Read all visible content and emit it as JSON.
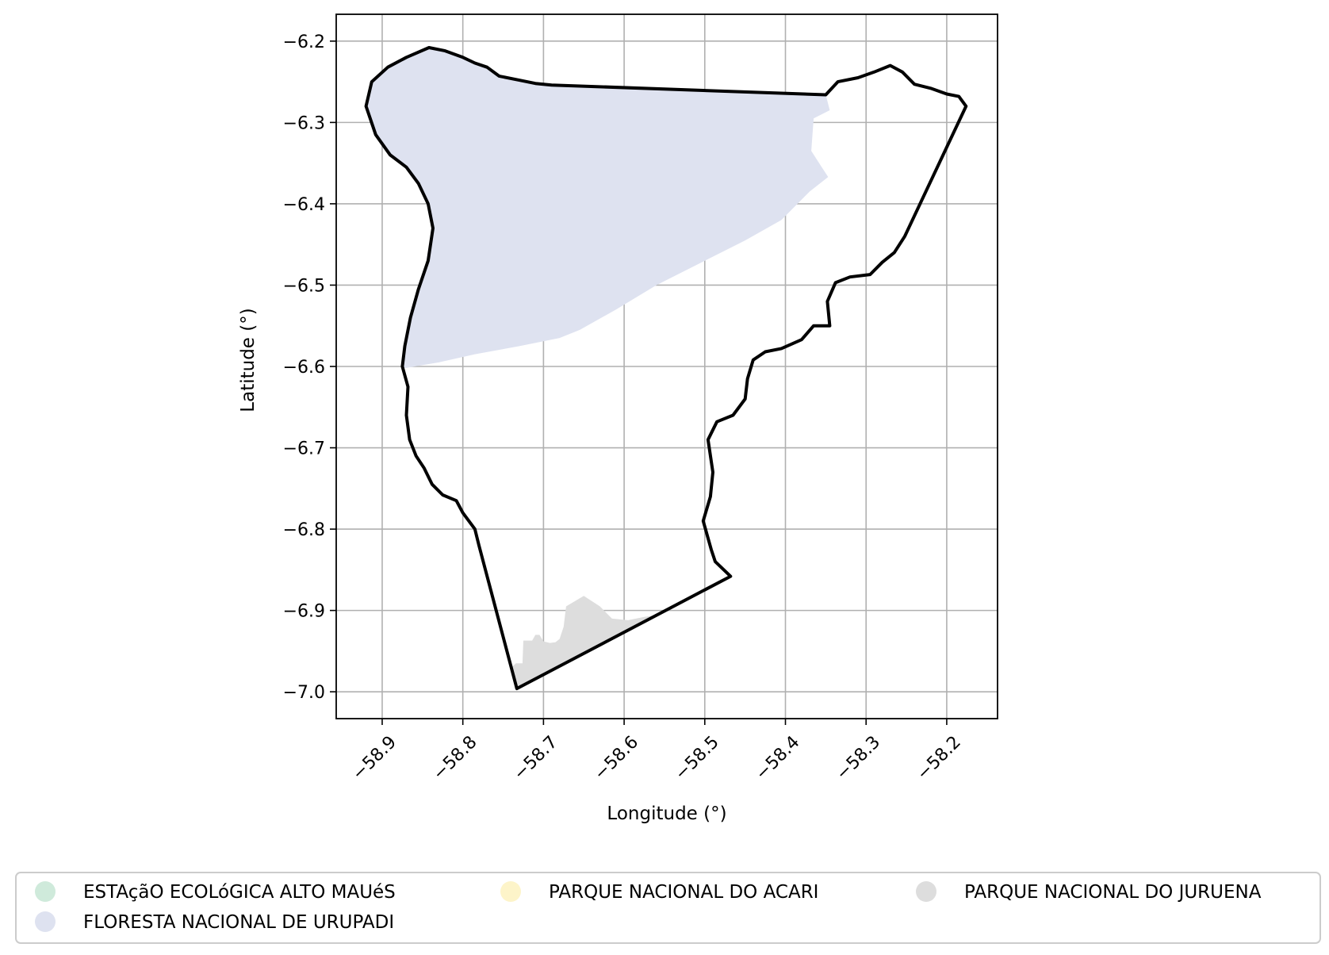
{
  "map": {
    "xlabel": "Longitude (°)",
    "ylabel": "Latitude (°)",
    "xlim": [
      -58.957,
      -58.137
    ],
    "ylim": [
      -7.033,
      -6.167
    ],
    "grid": true,
    "x_ticks": [
      {
        "value": -58.9,
        "label": "−58.9"
      },
      {
        "value": -58.8,
        "label": "−58.8"
      },
      {
        "value": -58.7,
        "label": "−58.7"
      },
      {
        "value": -58.6,
        "label": "−58.6"
      },
      {
        "value": -58.5,
        "label": "−58.5"
      },
      {
        "value": -58.4,
        "label": "−58.4"
      },
      {
        "value": -58.3,
        "label": "−58.3"
      },
      {
        "value": -58.2,
        "label": "−58.2"
      }
    ],
    "y_ticks": [
      {
        "value": -6.2,
        "label": "−6.2"
      },
      {
        "value": -6.3,
        "label": "−6.3"
      },
      {
        "value": -6.4,
        "label": "−6.4"
      },
      {
        "value": -6.5,
        "label": "−6.5"
      },
      {
        "value": -6.6,
        "label": "−6.6"
      },
      {
        "value": -6.7,
        "label": "−6.7"
      },
      {
        "value": -6.8,
        "label": "−6.8"
      },
      {
        "value": -6.9,
        "label": "−6.9"
      },
      {
        "value": -7.0,
        "label": "−7.0"
      }
    ],
    "boundary_color": "#000000",
    "boundary": [
      [
        -58.842,
        -6.208
      ],
      [
        -58.822,
        -6.212
      ],
      [
        -58.8,
        -6.22
      ],
      [
        -58.785,
        -6.227
      ],
      [
        -58.77,
        -6.232
      ],
      [
        -58.755,
        -6.243
      ],
      [
        -58.73,
        -6.248
      ],
      [
        -58.71,
        -6.252
      ],
      [
        -58.69,
        -6.254
      ],
      [
        -58.35,
        -6.266
      ],
      [
        -58.335,
        -6.25
      ],
      [
        -58.31,
        -6.245
      ],
      [
        -58.29,
        -6.238
      ],
      [
        -58.27,
        -6.23
      ],
      [
        -58.255,
        -6.238
      ],
      [
        -58.24,
        -6.253
      ],
      [
        -58.22,
        -6.258
      ],
      [
        -58.2,
        -6.265
      ],
      [
        -58.185,
        -6.268
      ],
      [
        -58.176,
        -6.28
      ],
      [
        -58.252,
        -6.44
      ],
      [
        -58.265,
        -6.46
      ],
      [
        -58.28,
        -6.472
      ],
      [
        -58.295,
        -6.487
      ],
      [
        -58.32,
        -6.49
      ],
      [
        -58.338,
        -6.497
      ],
      [
        -58.348,
        -6.52
      ],
      [
        -58.345,
        -6.55
      ],
      [
        -58.365,
        -6.55
      ],
      [
        -58.38,
        -6.567
      ],
      [
        -58.405,
        -6.578
      ],
      [
        -58.425,
        -6.582
      ],
      [
        -58.44,
        -6.592
      ],
      [
        -58.447,
        -6.615
      ],
      [
        -58.45,
        -6.64
      ],
      [
        -58.465,
        -6.66
      ],
      [
        -58.485,
        -6.668
      ],
      [
        -58.496,
        -6.69
      ],
      [
        -58.49,
        -6.73
      ],
      [
        -58.493,
        -6.76
      ],
      [
        -58.502,
        -6.79
      ],
      [
        -58.492,
        -6.825
      ],
      [
        -58.487,
        -6.84
      ],
      [
        -58.468,
        -6.858
      ],
      [
        -58.733,
        -6.996
      ],
      [
        -58.78,
        -6.82
      ],
      [
        -58.785,
        -6.8
      ],
      [
        -58.8,
        -6.78
      ],
      [
        -58.808,
        -6.765
      ],
      [
        -58.825,
        -6.758
      ],
      [
        -58.838,
        -6.745
      ],
      [
        -58.848,
        -6.725
      ],
      [
        -58.858,
        -6.71
      ],
      [
        -58.866,
        -6.69
      ],
      [
        -58.87,
        -6.66
      ],
      [
        -58.868,
        -6.625
      ],
      [
        -58.875,
        -6.6
      ],
      [
        -58.872,
        -6.575
      ],
      [
        -58.865,
        -6.54
      ],
      [
        -58.855,
        -6.505
      ],
      [
        -58.843,
        -6.47
      ],
      [
        -58.837,
        -6.43
      ],
      [
        -58.843,
        -6.4
      ],
      [
        -58.855,
        -6.375
      ],
      [
        -58.87,
        -6.355
      ],
      [
        -58.89,
        -6.34
      ],
      [
        -58.908,
        -6.315
      ],
      [
        -58.92,
        -6.28
      ],
      [
        -58.913,
        -6.25
      ],
      [
        -58.893,
        -6.232
      ],
      [
        -58.87,
        -6.22
      ]
    ],
    "layers": [
      {
        "name": "FLORESTA NACIONAL DE URUPADI",
        "color": "#dee2f0",
        "polygon": [
          [
            -58.842,
            -6.208
          ],
          [
            -58.822,
            -6.212
          ],
          [
            -58.8,
            -6.22
          ],
          [
            -58.785,
            -6.227
          ],
          [
            -58.77,
            -6.232
          ],
          [
            -58.755,
            -6.243
          ],
          [
            -58.73,
            -6.248
          ],
          [
            -58.71,
            -6.252
          ],
          [
            -58.69,
            -6.254
          ],
          [
            -58.35,
            -6.266
          ],
          [
            -58.345,
            -6.285
          ],
          [
            -58.365,
            -6.295
          ],
          [
            -58.368,
            -6.335
          ],
          [
            -58.355,
            -6.355
          ],
          [
            -58.347,
            -6.367
          ],
          [
            -58.37,
            -6.385
          ],
          [
            -58.405,
            -6.42
          ],
          [
            -58.45,
            -6.445
          ],
          [
            -58.5,
            -6.47
          ],
          [
            -58.56,
            -6.5
          ],
          [
            -58.61,
            -6.53
          ],
          [
            -58.655,
            -6.555
          ],
          [
            -58.68,
            -6.565
          ],
          [
            -58.73,
            -6.575
          ],
          [
            -58.785,
            -6.585
          ],
          [
            -58.83,
            -6.595
          ],
          [
            -58.872,
            -6.602
          ],
          [
            -58.875,
            -6.6
          ],
          [
            -58.872,
            -6.575
          ],
          [
            -58.865,
            -6.54
          ],
          [
            -58.855,
            -6.505
          ],
          [
            -58.843,
            -6.47
          ],
          [
            -58.837,
            -6.43
          ],
          [
            -58.843,
            -6.4
          ],
          [
            -58.855,
            -6.375
          ],
          [
            -58.87,
            -6.355
          ],
          [
            -58.89,
            -6.34
          ],
          [
            -58.908,
            -6.315
          ],
          [
            -58.92,
            -6.28
          ],
          [
            -58.913,
            -6.25
          ],
          [
            -58.893,
            -6.232
          ],
          [
            -58.87,
            -6.22
          ]
        ]
      },
      {
        "name": "PARQUE NACIONAL DO JURUENA",
        "color": "#dddddd",
        "polygon": [
          [
            -58.74,
            -6.97
          ],
          [
            -58.734,
            -6.965
          ],
          [
            -58.726,
            -6.965
          ],
          [
            -58.725,
            -6.937
          ],
          [
            -58.714,
            -6.937
          ],
          [
            -58.71,
            -6.93
          ],
          [
            -58.705,
            -6.93
          ],
          [
            -58.7,
            -6.938
          ],
          [
            -58.692,
            -6.94
          ],
          [
            -58.685,
            -6.939
          ],
          [
            -58.68,
            -6.935
          ],
          [
            -58.675,
            -6.92
          ],
          [
            -58.672,
            -6.895
          ],
          [
            -58.65,
            -6.882
          ],
          [
            -58.63,
            -6.895
          ],
          [
            -58.615,
            -6.91
          ],
          [
            -58.595,
            -6.912
          ],
          [
            -58.575,
            -6.908
          ],
          [
            -58.555,
            -6.905
          ],
          [
            -58.735,
            -6.997
          ]
        ]
      },
      {
        "name": "ESTAçãO ECOLóGICA ALTO MAUéS",
        "color": "#cfeadb",
        "polygon": []
      },
      {
        "name": "PARQUE NACIONAL DO ACARI",
        "color": "#fdf4c9",
        "polygon": []
      }
    ],
    "legend": {
      "placement": "bottom",
      "items": [
        {
          "label": "ESTAçãO ECOLóGICA ALTO MAUéS",
          "color": "#cfeadb"
        },
        {
          "label": "PARQUE NACIONAL DO ACARI",
          "color": "#fdf4c9"
        },
        {
          "label": "PARQUE NACIONAL DO JURUENA",
          "color": "#dddddd"
        },
        {
          "label": "FLORESTA NACIONAL DE URUPADI",
          "color": "#dee2f0"
        }
      ]
    }
  }
}
